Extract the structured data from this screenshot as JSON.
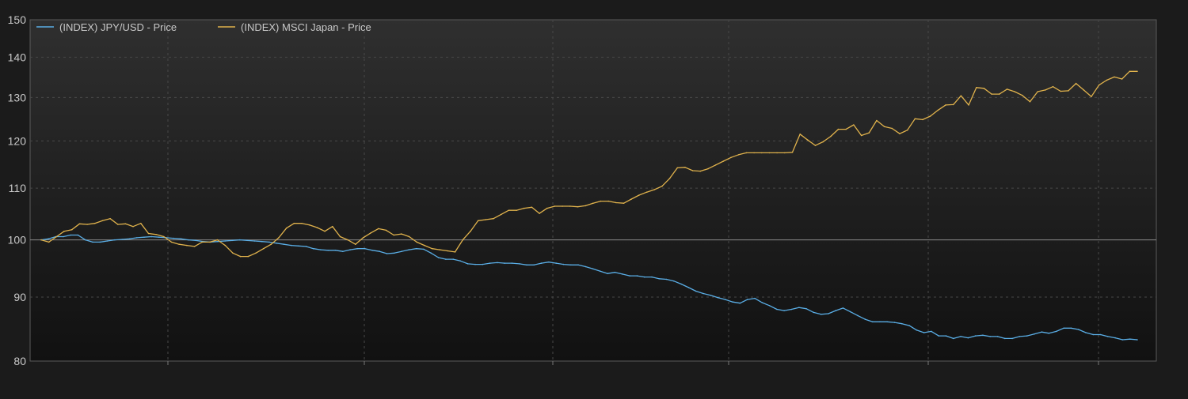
{
  "chart_data": {
    "type": "line",
    "title": "",
    "xlabel": "",
    "ylabel": "",
    "y_scale": "log",
    "ylim": [
      80,
      150
    ],
    "yticks": [
      80,
      90,
      100,
      110,
      120,
      130,
      140,
      150
    ],
    "reference_line": 100,
    "grid": true,
    "legend_position": "top-left",
    "series": [
      {
        "name": "(INDEX) JPY/USD - Price",
        "color": "#5aaee6",
        "values": [
          100.0,
          100.2,
          100.6,
          100.6,
          100.9,
          100.9,
          100.0,
          99.6,
          99.6,
          99.8,
          100.0,
          100.1,
          100.2,
          100.4,
          100.5,
          100.6,
          100.5,
          100.4,
          100.3,
          100.2,
          100.0,
          99.9,
          99.7,
          99.6,
          99.7,
          99.8,
          99.9,
          100.0,
          99.9,
          99.8,
          99.7,
          99.6,
          99.4,
          99.2,
          99.0,
          98.9,
          98.8,
          98.4,
          98.2,
          98.1,
          98.1,
          97.9,
          98.2,
          98.4,
          98.4,
          98.1,
          97.9,
          97.5,
          97.6,
          97.9,
          98.2,
          98.4,
          98.3,
          97.6,
          96.8,
          96.5,
          96.5,
          96.2,
          95.7,
          95.6,
          95.6,
          95.8,
          95.9,
          95.8,
          95.8,
          95.7,
          95.5,
          95.5,
          95.8,
          96.0,
          95.8,
          95.6,
          95.5,
          95.5,
          95.2,
          94.8,
          94.4,
          94.0,
          94.2,
          93.9,
          93.6,
          93.6,
          93.4,
          93.4,
          93.1,
          93.0,
          92.7,
          92.2,
          91.6,
          91.0,
          90.6,
          90.3,
          89.9,
          89.6,
          89.2,
          89.0,
          89.6,
          89.8,
          89.1,
          88.6,
          88.0,
          87.8,
          88.0,
          88.3,
          88.1,
          87.5,
          87.2,
          87.3,
          87.8,
          88.2,
          87.6,
          87.0,
          86.4,
          86.0,
          86.0,
          86.0,
          85.9,
          85.7,
          85.4,
          84.7,
          84.3,
          84.5,
          83.8,
          83.8,
          83.4,
          83.7,
          83.5,
          83.8,
          83.9,
          83.7,
          83.7,
          83.4,
          83.4,
          83.7,
          83.8,
          84.1,
          84.4,
          84.2,
          84.5,
          85.0,
          85.0,
          84.8,
          84.3,
          84.0,
          84.0,
          83.7,
          83.5,
          83.2,
          83.3,
          83.2
        ]
      },
      {
        "name": "(INDEX) MSCI Japan - Price",
        "color": "#e0b24c",
        "values": [
          100.0,
          99.6,
          100.6,
          101.6,
          101.9,
          103.0,
          102.9,
          103.1,
          103.6,
          104.0,
          102.9,
          103.0,
          102.5,
          103.1,
          101.2,
          101.0,
          100.6,
          99.6,
          99.2,
          99.0,
          98.8,
          99.6,
          99.6,
          100.0,
          99.0,
          97.6,
          97.0,
          97.0,
          97.6,
          98.4,
          99.2,
          100.4,
          102.2,
          103.1,
          103.1,
          102.8,
          102.3,
          101.6,
          102.5,
          100.6,
          100.0,
          99.2,
          100.4,
          101.3,
          102.1,
          101.8,
          100.9,
          101.1,
          100.6,
          99.6,
          99.0,
          98.4,
          98.2,
          98.0,
          97.8,
          100.0,
          101.6,
          103.6,
          103.8,
          104.0,
          104.8,
          105.6,
          105.6,
          106.0,
          106.2,
          105.0,
          106.0,
          106.4,
          106.4,
          106.4,
          106.3,
          106.5,
          107.0,
          107.4,
          107.4,
          107.1,
          107.0,
          107.8,
          108.6,
          109.2,
          109.7,
          110.4,
          112.0,
          114.2,
          114.3,
          113.6,
          113.5,
          114.0,
          114.8,
          115.6,
          116.4,
          117.0,
          117.4,
          117.4,
          117.4,
          117.4,
          117.4,
          117.4,
          117.5,
          121.5,
          120.2,
          119.0,
          119.8,
          121.0,
          122.6,
          122.6,
          123.6,
          121.2,
          121.8,
          124.6,
          123.2,
          122.8,
          121.6,
          122.4,
          125.0,
          124.8,
          125.6,
          127.0,
          128.2,
          128.3,
          130.4,
          128.2,
          132.4,
          132.2,
          130.8,
          130.8,
          132.0,
          131.4,
          130.5,
          129.0,
          131.4,
          131.8,
          132.6,
          131.5,
          131.6,
          133.4,
          131.8,
          130.2,
          133.0,
          134.2,
          135.0,
          134.5,
          136.4,
          136.4
        ]
      }
    ]
  }
}
